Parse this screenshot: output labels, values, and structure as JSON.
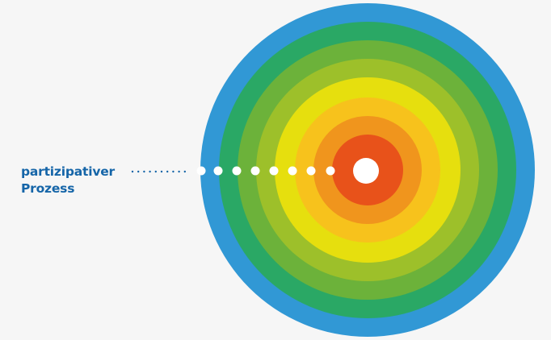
{
  "label": {
    "line1": "partizipativer",
    "line2": "Prozess"
  },
  "rings": {
    "colors": [
      "#3198d5",
      "#2aa865",
      "#6cb23a",
      "#9dc02a",
      "#c8d21c",
      "#e6df0e",
      "#f7c21c",
      "#f0951d",
      "#e8521a"
    ],
    "center_color": "#ffffff"
  },
  "connector": {
    "small_dots_color": "#1565a8",
    "large_dots_color": "#ffffff"
  }
}
